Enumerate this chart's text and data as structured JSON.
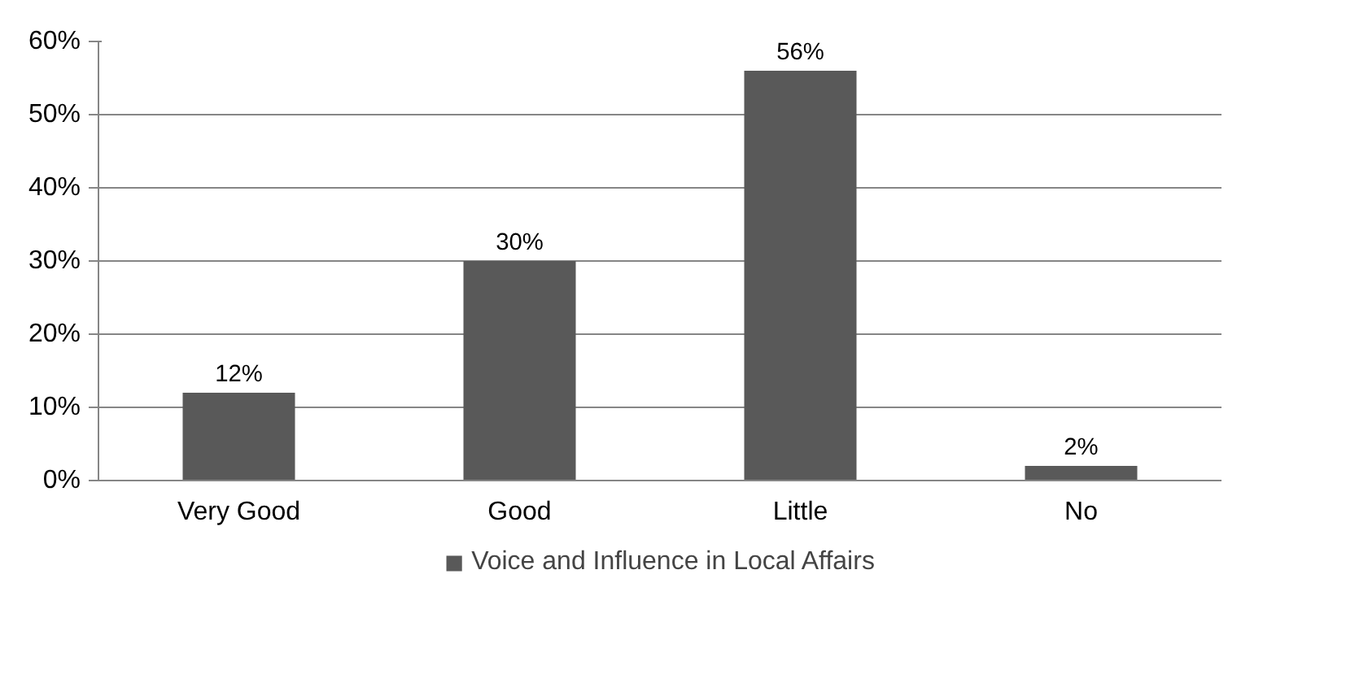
{
  "chart_data": {
    "type": "bar",
    "categories": [
      "Very Good",
      "Good",
      "Little",
      "No"
    ],
    "series": [
      {
        "name": "Voice and Influence in Local Affairs",
        "color": "#595959",
        "values": [
          12,
          30,
          56,
          2
        ],
        "value_labels": [
          "12%",
          "30%",
          "56%",
          "2%"
        ]
      }
    ],
    "ylim": [
      0,
      60
    ],
    "yticks": [
      {
        "value": 0,
        "label": "0%"
      },
      {
        "value": 10,
        "label": "10%"
      },
      {
        "value": 20,
        "label": "20%"
      },
      {
        "value": 30,
        "label": "30%"
      },
      {
        "value": 40,
        "label": "40%"
      },
      {
        "value": 50,
        "label": "50%"
      },
      {
        "value": 60,
        "label": "60%"
      }
    ],
    "grid": "y",
    "legend": "bottom"
  }
}
